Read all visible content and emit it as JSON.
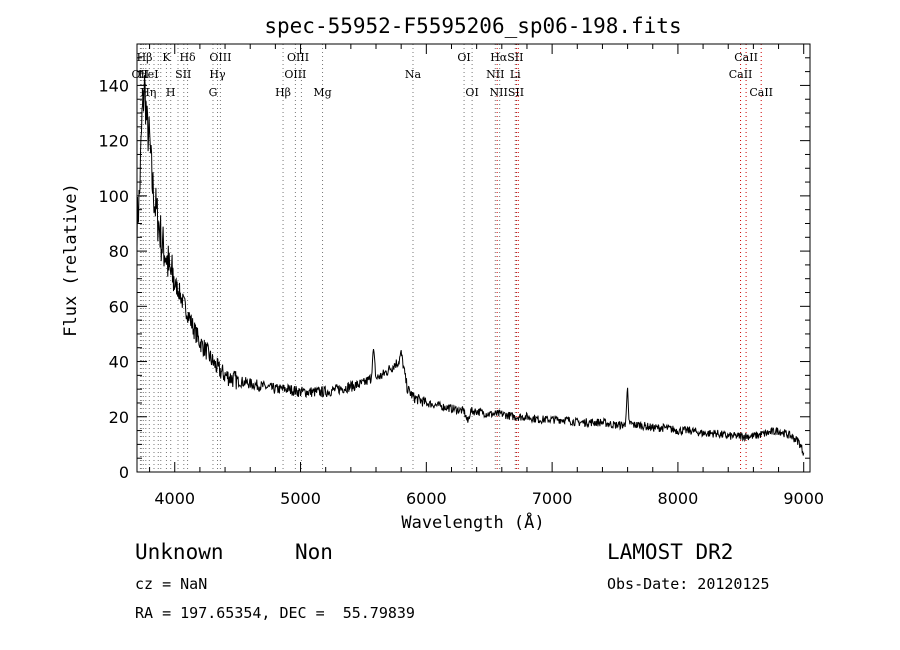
{
  "chart_data": {
    "type": "line",
    "title": "spec-55952-F5595206_sp06-198.fits",
    "xlabel": "Wavelength (Å)",
    "ylabel": "Flux (relative)",
    "xlim": [
      3700,
      9050
    ],
    "ylim": [
      0,
      155
    ],
    "xticks": [
      4000,
      5000,
      6000,
      7000,
      8000,
      9000
    ],
    "yticks": [
      0,
      20,
      40,
      60,
      80,
      100,
      120,
      140
    ],
    "grid": false,
    "series": [
      {
        "color": "#000000",
        "x": [
          3700,
          3720,
          3740,
          3760,
          3780,
          3800,
          3820,
          3850,
          3880,
          3900,
          3930,
          3960,
          3990,
          4000,
          4030,
          4060,
          4100,
          4150,
          4200,
          4250,
          4300,
          4350,
          4400,
          4450,
          4500,
          4600,
          4700,
          4800,
          4900,
          5000,
          5100,
          5200,
          5300,
          5400,
          5500,
          5560,
          5580,
          5600,
          5650,
          5700,
          5750,
          5780,
          5800,
          5830,
          5850,
          5900,
          5950,
          6000,
          6100,
          6200,
          6300,
          6330,
          6350,
          6400,
          6500,
          6600,
          6700,
          6800,
          6900,
          7000,
          7100,
          7200,
          7300,
          7400,
          7500,
          7580,
          7600,
          7610,
          7650,
          7700,
          7800,
          7900,
          8000,
          8100,
          8200,
          8300,
          8400,
          8500,
          8600,
          8700,
          8800,
          8900,
          8960,
          9000
        ],
        "values": [
          90,
          100,
          128,
          140,
          125,
          120,
          105,
          95,
          88,
          82,
          79,
          72,
          70,
          68,
          66,
          62,
          58,
          52,
          47,
          44,
          40,
          37,
          35,
          34,
          33,
          32,
          31,
          30,
          30,
          29,
          29,
          29,
          30,
          31,
          32,
          34,
          44,
          34,
          35,
          37,
          39,
          40,
          43,
          35,
          30,
          27,
          26,
          25,
          24,
          23,
          22,
          18,
          22,
          22,
          21,
          21,
          20,
          20,
          19,
          19,
          19,
          18,
          18,
          18,
          17,
          17,
          30,
          18,
          17,
          17,
          16,
          16,
          15,
          15,
          14,
          14,
          13,
          13,
          13,
          14,
          15,
          13,
          11,
          7
        ]
      }
    ],
    "lines": [
      {
        "x": 3727,
        "color": "#777777"
      },
      {
        "x": 3734,
        "color": "#777777"
      },
      {
        "x": 3750,
        "color": "#777777"
      },
      {
        "x": 3770,
        "color": "#777777"
      },
      {
        "x": 3798,
        "color": "#777777"
      },
      {
        "x": 3835,
        "color": "#777777"
      },
      {
        "x": 3869,
        "color": "#777777"
      },
      {
        "x": 3889,
        "color": "#777777"
      },
      {
        "x": 3934,
        "color": "#777777"
      },
      {
        "x": 3968,
        "color": "#777777"
      },
      {
        "x": 4026,
        "color": "#777777"
      },
      {
        "x": 4072,
        "color": "#777777"
      },
      {
        "x": 4102,
        "color": "#777777"
      },
      {
        "x": 4304,
        "color": "#777777"
      },
      {
        "x": 4340,
        "color": "#777777"
      },
      {
        "x": 4363,
        "color": "#777777"
      },
      {
        "x": 4861,
        "color": "#777777"
      },
      {
        "x": 4959,
        "color": "#777777"
      },
      {
        "x": 5007,
        "color": "#777777"
      },
      {
        "x": 5175,
        "color": "#777777"
      },
      {
        "x": 5894,
        "color": "#777777"
      },
      {
        "x": 6300,
        "color": "#777777"
      },
      {
        "x": 6364,
        "color": "#777777"
      },
      {
        "x": 6548,
        "color": "#777777"
      },
      {
        "x": 6563,
        "color": "#cc0000"
      },
      {
        "x": 6583,
        "color": "#777777"
      },
      {
        "x": 6707,
        "color": "#777777"
      },
      {
        "x": 6716,
        "color": "#cc0000"
      },
      {
        "x": 6731,
        "color": "#cc0000"
      },
      {
        "x": 8498,
        "color": "#cc0000"
      },
      {
        "x": 8542,
        "color": "#cc0000"
      },
      {
        "x": 8662,
        "color": "#cc0000"
      }
    ],
    "line_labels": [
      {
        "text": "OII",
        "x": 3727,
        "row": 2
      },
      {
        "text": "Hη",
        "x": 3790,
        "row": 3
      },
      {
        "text": "Hβ",
        "x": 3760,
        "row": 1
      },
      {
        "text": "HeI",
        "x": 3790,
        "row": 2
      },
      {
        "text": "K",
        "x": 3934,
        "row": 1
      },
      {
        "text": "SII",
        "x": 4068,
        "row": 2
      },
      {
        "text": "H",
        "x": 3968,
        "row": 3
      },
      {
        "text": "Hδ",
        "x": 4102,
        "row": 1
      },
      {
        "text": "OIII",
        "x": 4363,
        "row": 1
      },
      {
        "text": "Hγ",
        "x": 4340,
        "row": 2
      },
      {
        "text": "G",
        "x": 4304,
        "row": 3
      },
      {
        "text": "OIII",
        "x": 4980,
        "row": 1
      },
      {
        "text": "OIII",
        "x": 4959,
        "row": 2
      },
      {
        "text": "Hβ",
        "x": 4861,
        "row": 3
      },
      {
        "text": "Mg",
        "x": 5175,
        "row": 3
      },
      {
        "text": "Na",
        "x": 5894,
        "row": 2
      },
      {
        "text": "OI",
        "x": 6300,
        "row": 1
      },
      {
        "text": "OI",
        "x": 6364,
        "row": 3
      },
      {
        "text": "HαSII",
        "x": 6640,
        "row": 1
      },
      {
        "text": "NII",
        "x": 6548,
        "row": 2
      },
      {
        "text": "Li",
        "x": 6707,
        "row": 2
      },
      {
        "text": "NIISII",
        "x": 6640,
        "row": 3
      },
      {
        "text": "CaII",
        "x": 8542,
        "row": 1
      },
      {
        "text": "CaII",
        "x": 8498,
        "row": 2
      },
      {
        "text": "CaII",
        "x": 8662,
        "row": 3
      }
    ]
  },
  "info": {
    "class": "Unknown",
    "subclass": "Non",
    "cz": "cz = NaN",
    "coords": "RA = 197.65354, DEC =  55.79839",
    "survey": "LAMOST DR2",
    "obs_date": "Obs-Date: 20120125"
  }
}
